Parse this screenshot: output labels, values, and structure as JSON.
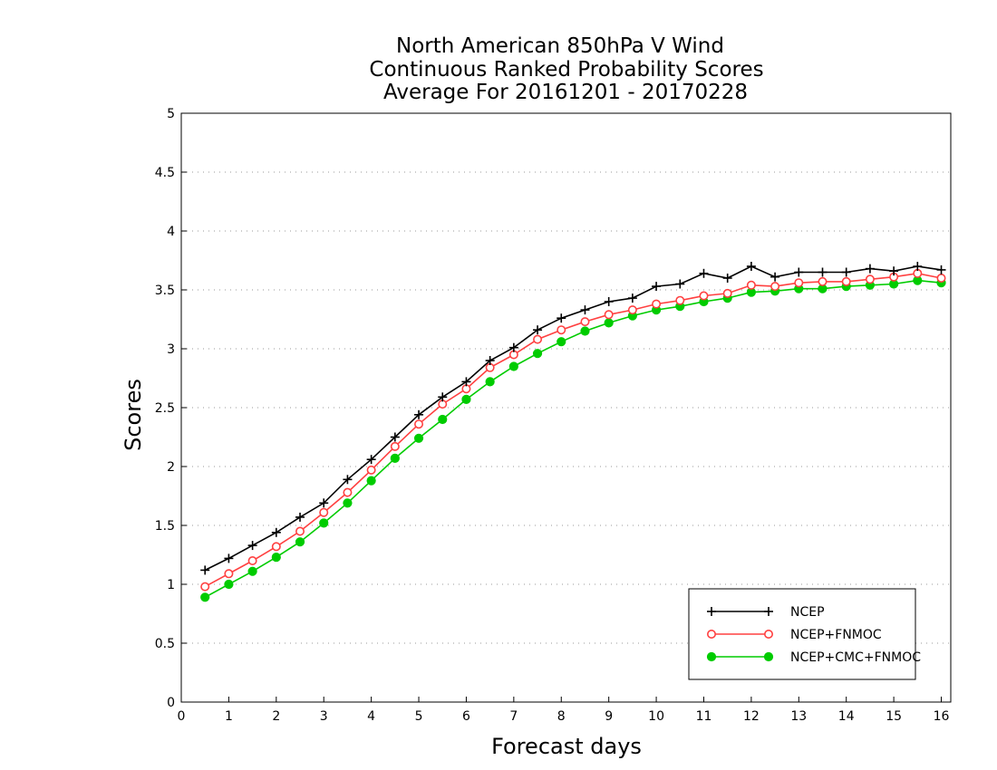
{
  "chart_data": {
    "type": "line",
    "title_lines": [
      "North American 850hPa V Wind",
      "Continuous Ranked Probability Scores",
      "Average For 20161201 - 20170228"
    ],
    "xlabel": "Forecast days",
    "ylabel": "Scores",
    "xlim": [
      0,
      16.2
    ],
    "ylim": [
      0,
      5
    ],
    "x_ticks": [
      "0",
      "1",
      "2",
      "3",
      "4",
      "5",
      "6",
      "7",
      "8",
      "9",
      "10",
      "11",
      "12",
      "13",
      "14",
      "15",
      "16"
    ],
    "y_ticks": [
      "0",
      "0.5",
      "1",
      "1.5",
      "2",
      "2.5",
      "3",
      "3.5",
      "4",
      "4.5",
      "5"
    ],
    "grid": true,
    "legend_position": "bottom-right",
    "x": [
      0.5,
      1,
      1.5,
      2,
      2.5,
      3,
      3.5,
      4,
      4.5,
      5,
      5.5,
      6,
      6.5,
      7,
      7.5,
      8,
      8.5,
      9,
      9.5,
      10,
      10.5,
      11,
      11.5,
      12,
      12.5,
      13,
      13.5,
      14,
      14.5,
      15,
      15.5,
      16
    ],
    "series": [
      {
        "name": "NCEP",
        "color": "#000000",
        "marker": "plus",
        "values": [
          1.12,
          1.22,
          1.33,
          1.44,
          1.57,
          1.69,
          1.89,
          2.06,
          2.25,
          2.44,
          2.59,
          2.72,
          2.9,
          3.01,
          3.16,
          3.26,
          3.33,
          3.4,
          3.43,
          3.53,
          3.55,
          3.64,
          3.6,
          3.7,
          3.61,
          3.65,
          3.65,
          3.65,
          3.68,
          3.66,
          3.7,
          3.67
        ]
      },
      {
        "name": "NCEP+FNMOC",
        "color": "#ff4040",
        "marker": "open-circle",
        "values": [
          0.98,
          1.09,
          1.2,
          1.32,
          1.45,
          1.61,
          1.78,
          1.97,
          2.17,
          2.36,
          2.53,
          2.66,
          2.84,
          2.95,
          3.08,
          3.16,
          3.23,
          3.29,
          3.33,
          3.38,
          3.41,
          3.45,
          3.47,
          3.54,
          3.53,
          3.56,
          3.57,
          3.57,
          3.59,
          3.61,
          3.64,
          3.6
        ]
      },
      {
        "name": "NCEP+CMC+FNMOC",
        "color": "#00cc00",
        "marker": "filled-circle",
        "values": [
          0.89,
          1.0,
          1.11,
          1.23,
          1.36,
          1.52,
          1.69,
          1.88,
          2.07,
          2.24,
          2.4,
          2.57,
          2.72,
          2.85,
          2.96,
          3.06,
          3.15,
          3.22,
          3.28,
          3.33,
          3.36,
          3.4,
          3.43,
          3.48,
          3.49,
          3.51,
          3.51,
          3.53,
          3.54,
          3.55,
          3.58,
          3.56
        ]
      }
    ]
  }
}
